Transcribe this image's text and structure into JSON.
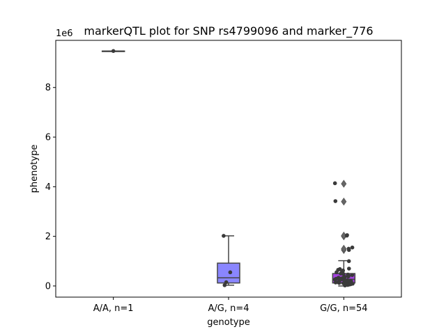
{
  "chart_data": {
    "type": "box",
    "title": "markerQTL plot for SNP rs4799096 and marker_776",
    "xlabel": "genotype",
    "ylabel": "phenotype",
    "y_offset_label": "1e6",
    "y_scale_factor": 1000000,
    "ylim": [
      -0.45,
      9.9
    ],
    "yticks": [
      0,
      2,
      4,
      6,
      8
    ],
    "categories": [
      "A/A, n=1",
      "A/G, n=4",
      "G/G, n=54"
    ],
    "boxes": [
      {
        "category": "A/A, n=1",
        "q1": 9.47,
        "median": 9.47,
        "q3": 9.47,
        "whisker_low": 9.47,
        "whisker_high": 9.47,
        "color": "#7b7bff",
        "outliers": []
      },
      {
        "category": "A/G, n=4",
        "q1": 0.12,
        "median": 0.33,
        "q3": 0.92,
        "whisker_low": 0.03,
        "whisker_high": 2.02,
        "color": "#8a86ff",
        "outliers": []
      },
      {
        "category": "G/G, n=54",
        "q1": 0.12,
        "median": 0.27,
        "q3": 0.5,
        "whisker_low": 0.0,
        "whisker_high": 1.02,
        "color": "#a442e0",
        "outliers": [
          1.45,
          1.5,
          2.0,
          2.03,
          3.4,
          4.12
        ]
      }
    ],
    "points": [
      {
        "category": "A/A, n=1",
        "values": [
          9.47
        ]
      },
      {
        "category": "A/G, n=4",
        "values": [
          0.55,
          0.15,
          0.03,
          2.02
        ]
      },
      {
        "category": "G/G, n=54",
        "values": [
          4.14,
          3.42,
          2.05,
          2.03,
          1.55,
          1.5,
          1.45,
          1.0,
          0.7,
          0.68,
          0.65,
          0.62,
          0.6,
          0.55,
          0.52,
          0.5,
          0.48,
          0.46,
          0.44,
          0.42,
          0.4,
          0.38,
          0.37,
          0.35,
          0.33,
          0.32,
          0.3,
          0.29,
          0.28,
          0.27,
          0.26,
          0.25,
          0.24,
          0.23,
          0.22,
          0.21,
          0.2,
          0.19,
          0.18,
          0.17,
          0.16,
          0.15,
          0.14,
          0.13,
          0.12,
          0.11,
          0.1,
          0.09,
          0.08,
          0.07,
          0.06,
          0.05,
          0.04,
          0.02
        ]
      }
    ],
    "grid": false,
    "legend": "none"
  }
}
